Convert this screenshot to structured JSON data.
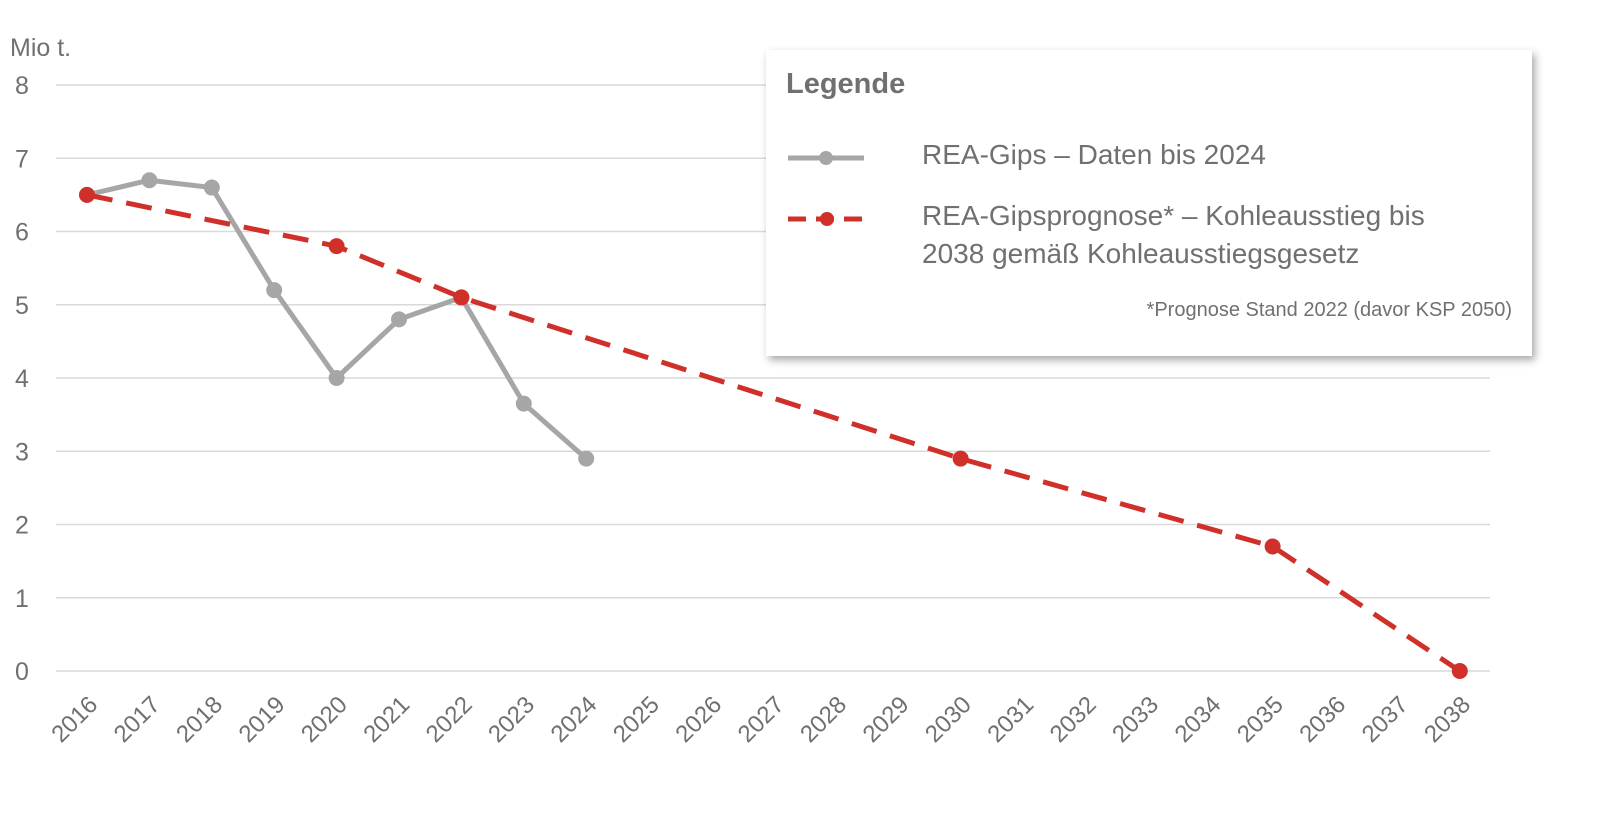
{
  "chart_data": {
    "type": "line",
    "ylabel": "Mio t.",
    "ylim": [
      0,
      8
    ],
    "yticks": [
      "0",
      "1",
      "2",
      "3",
      "4",
      "5",
      "6",
      "7",
      "8"
    ],
    "categories": [
      "2016",
      "2017",
      "2018",
      "2019",
      "2020",
      "2021",
      "2022",
      "2023",
      "2024",
      "2025",
      "2026",
      "2027",
      "2028",
      "2029",
      "2030",
      "2031",
      "2032",
      "2033",
      "2034",
      "2035",
      "2036",
      "2037",
      "2038"
    ],
    "grid": true,
    "legend_position": "top-right",
    "series": [
      {
        "name": "REA-Gips – Daten bis 2024",
        "color": "#a6a6a6",
        "style": "solid",
        "points": [
          {
            "x": "2016",
            "y": 6.5
          },
          {
            "x": "2017",
            "y": 6.7
          },
          {
            "x": "2018",
            "y": 6.6
          },
          {
            "x": "2019",
            "y": 5.2
          },
          {
            "x": "2020",
            "y": 4.0
          },
          {
            "x": "2021",
            "y": 4.8
          },
          {
            "x": "2022",
            "y": 5.1
          },
          {
            "x": "2023",
            "y": 3.65
          },
          {
            "x": "2024",
            "y": 2.9
          }
        ]
      },
      {
        "name": "REA-Gipsprognose* – Kohleausstieg bis 2038 gemäß Kohleausstiegsgesetz",
        "color": "#d0302a",
        "style": "dashed",
        "points": [
          {
            "x": "2016",
            "y": 6.5
          },
          {
            "x": "2020",
            "y": 5.8
          },
          {
            "x": "2022",
            "y": 5.1
          },
          {
            "x": "2030",
            "y": 2.9
          },
          {
            "x": "2035",
            "y": 1.7
          },
          {
            "x": "2038",
            "y": 0.0
          }
        ]
      }
    ]
  },
  "legend": {
    "title": "Legende",
    "item1": "REA-Gips – Daten bis 2024",
    "item2_line1": "REA-Gipsprognose* – Kohleausstieg bis",
    "item2_line2": "2038 gemäß Kohleausstiegsgesetz",
    "note": "*Prognose Stand 2022 (davor KSP 2050)"
  },
  "colors": {
    "grid": "#d9d9d9",
    "text": "#707070"
  }
}
